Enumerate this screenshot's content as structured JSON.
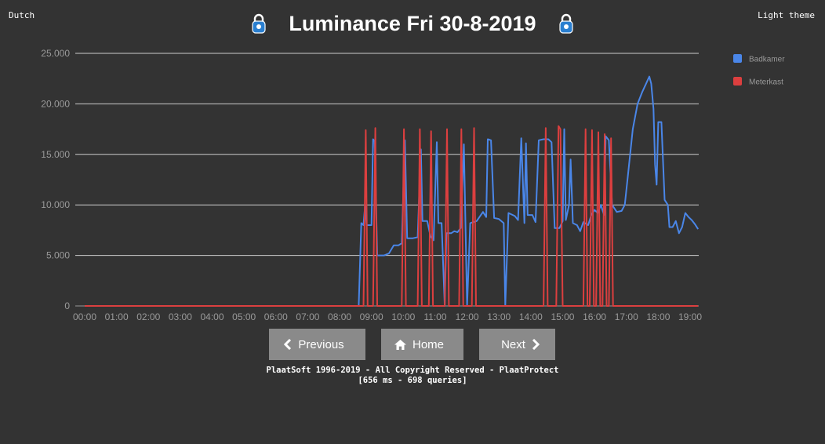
{
  "nav": {
    "language_label": "Dutch",
    "theme_label": "Light theme"
  },
  "header": {
    "title": "Luminance Fri 30-8-2019"
  },
  "buttons": {
    "previous_label": "Previous",
    "home_label": "Home",
    "next_label": "Next"
  },
  "footer": {
    "line1": "PlaatSoft 1996-2019 - All Copyright Reserved - PlaatProtect",
    "line2": "[656 ms - 698 queries]"
  },
  "colors": {
    "background": "#333333",
    "badkamer": "#4a86e8",
    "meterkast": "#dc3f3f",
    "gridline": "#cccccc",
    "button": "#8a8a8a"
  },
  "chart_data": {
    "type": "line",
    "title": "",
    "xlabel": "",
    "ylabel": "",
    "x_ticks": [
      "00:00",
      "01:00",
      "02:00",
      "03:00",
      "04:00",
      "05:00",
      "06:00",
      "07:00",
      "08:00",
      "09:00",
      "10:00",
      "11:00",
      "12:00",
      "13:00",
      "14:00",
      "15:00",
      "16:00",
      "17:00",
      "18:00",
      "19:00"
    ],
    "y_ticks": [
      "0",
      "5.000",
      "10.000",
      "15.000",
      "20.000",
      "25.000"
    ],
    "xlim": [
      0,
      19
    ],
    "ylim": [
      0,
      25000
    ],
    "grid": true,
    "legend": "right",
    "series": [
      {
        "name": "Badkamer",
        "color": "#4a86e8",
        "points": [
          [
            0,
            0
          ],
          [
            8.6,
            0
          ],
          [
            8.68,
            8200
          ],
          [
            8.75,
            8000
          ],
          [
            8.8,
            10000
          ],
          [
            8.85,
            8000
          ],
          [
            9.0,
            8000
          ],
          [
            9.05,
            16500
          ],
          [
            9.1,
            16300
          ],
          [
            9.18,
            5000
          ],
          [
            9.4,
            5000
          ],
          [
            9.55,
            5200
          ],
          [
            9.7,
            6000
          ],
          [
            9.85,
            6000
          ],
          [
            9.95,
            6200
          ],
          [
            10.05,
            16400
          ],
          [
            10.12,
            6700
          ],
          [
            10.3,
            6700
          ],
          [
            10.45,
            6800
          ],
          [
            10.55,
            15500
          ],
          [
            10.6,
            8400
          ],
          [
            10.75,
            8400
          ],
          [
            10.85,
            6900
          ],
          [
            10.95,
            6500
          ],
          [
            11.05,
            16200
          ],
          [
            11.1,
            8200
          ],
          [
            11.2,
            8200
          ],
          [
            11.3,
            0
          ],
          [
            11.35,
            7200
          ],
          [
            11.5,
            7200
          ],
          [
            11.6,
            7400
          ],
          [
            11.7,
            7300
          ],
          [
            11.8,
            7700
          ],
          [
            11.9,
            16000
          ],
          [
            11.95,
            8200
          ],
          [
            12.0,
            0
          ],
          [
            12.1,
            8200
          ],
          [
            12.3,
            8400
          ],
          [
            12.5,
            9300
          ],
          [
            12.6,
            8800
          ],
          [
            12.65,
            16500
          ],
          [
            12.75,
            16400
          ],
          [
            12.85,
            8700
          ],
          [
            13.0,
            8600
          ],
          [
            13.15,
            8200
          ],
          [
            13.2,
            0
          ],
          [
            13.3,
            9200
          ],
          [
            13.5,
            8900
          ],
          [
            13.6,
            8500
          ],
          [
            13.7,
            16600
          ],
          [
            13.8,
            8200
          ],
          [
            13.85,
            16100
          ],
          [
            13.9,
            9000
          ],
          [
            14.05,
            9000
          ],
          [
            14.15,
            8300
          ],
          [
            14.25,
            16400
          ],
          [
            14.4,
            16500
          ],
          [
            14.55,
            16500
          ],
          [
            14.65,
            16200
          ],
          [
            14.75,
            7700
          ],
          [
            14.9,
            7700
          ],
          [
            15.0,
            8400
          ],
          [
            15.05,
            17500
          ],
          [
            15.1,
            8500
          ],
          [
            15.2,
            10000
          ],
          [
            15.25,
            14500
          ],
          [
            15.32,
            8200
          ],
          [
            15.45,
            8000
          ],
          [
            15.55,
            7400
          ],
          [
            15.65,
            8300
          ],
          [
            15.8,
            8000
          ],
          [
            15.9,
            9000
          ],
          [
            16.0,
            9500
          ],
          [
            16.1,
            9200
          ],
          [
            16.2,
            10000
          ],
          [
            16.3,
            9000
          ],
          [
            16.35,
            16800
          ],
          [
            16.45,
            16400
          ],
          [
            16.55,
            10000
          ],
          [
            16.7,
            9300
          ],
          [
            16.85,
            9400
          ],
          [
            16.95,
            10000
          ],
          [
            17.05,
            13000
          ],
          [
            17.2,
            17500
          ],
          [
            17.35,
            20000
          ],
          [
            17.5,
            21200
          ],
          [
            17.62,
            22000
          ],
          [
            17.72,
            22700
          ],
          [
            17.78,
            22000
          ],
          [
            17.85,
            19500
          ],
          [
            17.9,
            14000
          ],
          [
            17.95,
            12000
          ],
          [
            18.0,
            18200
          ],
          [
            18.1,
            18200
          ],
          [
            18.2,
            10500
          ],
          [
            18.3,
            10000
          ],
          [
            18.35,
            7800
          ],
          [
            18.45,
            7800
          ],
          [
            18.55,
            8400
          ],
          [
            18.65,
            7200
          ],
          [
            18.75,
            7800
          ],
          [
            18.85,
            9200
          ],
          [
            18.95,
            8800
          ],
          [
            19.05,
            8500
          ],
          [
            19.15,
            8100
          ],
          [
            19.25,
            7600
          ]
        ]
      },
      {
        "name": "Meterkast",
        "color": "#dc3f3f",
        "points": [
          [
            0,
            0
          ],
          [
            8.75,
            0
          ],
          [
            8.82,
            17400
          ],
          [
            8.88,
            0
          ],
          [
            9.05,
            0
          ],
          [
            9.12,
            17600
          ],
          [
            9.18,
            0
          ],
          [
            9.95,
            0
          ],
          [
            10.02,
            17500
          ],
          [
            10.08,
            0
          ],
          [
            10.45,
            0
          ],
          [
            10.52,
            17500
          ],
          [
            10.58,
            0
          ],
          [
            10.8,
            0
          ],
          [
            10.87,
            17300
          ],
          [
            10.93,
            0
          ],
          [
            11.3,
            0
          ],
          [
            11.37,
            17500
          ],
          [
            11.43,
            0
          ],
          [
            11.75,
            0
          ],
          [
            11.82,
            17500
          ],
          [
            11.88,
            0
          ],
          [
            12.15,
            0
          ],
          [
            12.22,
            17600
          ],
          [
            12.28,
            0
          ],
          [
            14.4,
            0
          ],
          [
            14.47,
            17600
          ],
          [
            14.53,
            0
          ],
          [
            14.8,
            0
          ],
          [
            14.87,
            17800
          ],
          [
            14.93,
            17500
          ],
          [
            15.0,
            0
          ],
          [
            15.65,
            0
          ],
          [
            15.72,
            17500
          ],
          [
            15.78,
            0
          ],
          [
            15.85,
            0
          ],
          [
            15.92,
            17400
          ],
          [
            15.98,
            0
          ],
          [
            16.05,
            0
          ],
          [
            16.12,
            17200
          ],
          [
            16.18,
            0
          ],
          [
            16.25,
            0
          ],
          [
            16.32,
            17000
          ],
          [
            16.38,
            0
          ],
          [
            16.45,
            0
          ],
          [
            16.52,
            16600
          ],
          [
            16.58,
            0
          ],
          [
            19.25,
            0
          ]
        ]
      }
    ]
  }
}
